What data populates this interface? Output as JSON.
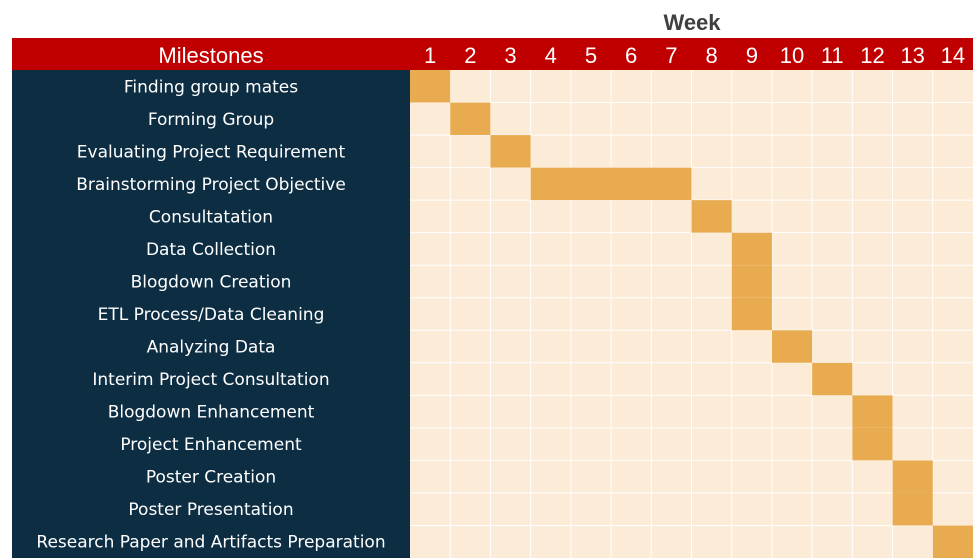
{
  "chart_data": {
    "type": "gantt",
    "title": "Week",
    "header_label": "Milestones",
    "weeks": [
      "1",
      "2",
      "3",
      "4",
      "5",
      "6",
      "7",
      "8",
      "9",
      "10",
      "11",
      "12",
      "13",
      "14"
    ],
    "tasks": [
      {
        "name": "Finding group mates",
        "start_week": 1,
        "end_week": 1
      },
      {
        "name": "Forming Group",
        "start_week": 2,
        "end_week": 2
      },
      {
        "name": "Evaluating Project Requirement",
        "start_week": 3,
        "end_week": 3
      },
      {
        "name": "Brainstorming Project Objective",
        "start_week": 4,
        "end_week": 7
      },
      {
        "name": "Consultatation",
        "start_week": 8,
        "end_week": 8
      },
      {
        "name": "Data Collection",
        "start_week": 9,
        "end_week": 9
      },
      {
        "name": "Blogdown Creation",
        "start_week": 9,
        "end_week": 9
      },
      {
        "name": "ETL Process/Data Cleaning",
        "start_week": 9,
        "end_week": 9
      },
      {
        "name": "Analyzing Data",
        "start_week": 10,
        "end_week": 10
      },
      {
        "name": "Interim Project Consultation",
        "start_week": 11,
        "end_week": 11
      },
      {
        "name": "Blogdown Enhancement",
        "start_week": 12,
        "end_week": 12
      },
      {
        "name": "Project Enhancement",
        "start_week": 12,
        "end_week": 12
      },
      {
        "name": "Poster Creation",
        "start_week": 13,
        "end_week": 13
      },
      {
        "name": "Poster Presentation",
        "start_week": 13,
        "end_week": 13
      },
      {
        "name": "Research Paper and Artifacts Preparation",
        "start_week": 14,
        "end_week": 14
      }
    ],
    "colors": {
      "header_bg": "#c00000",
      "label_bg": "#0d2d42",
      "grid_bg": "#fbebd7",
      "bar": "#e9ab50",
      "gridline": "#ffffff",
      "title_text": "#404040"
    }
  }
}
